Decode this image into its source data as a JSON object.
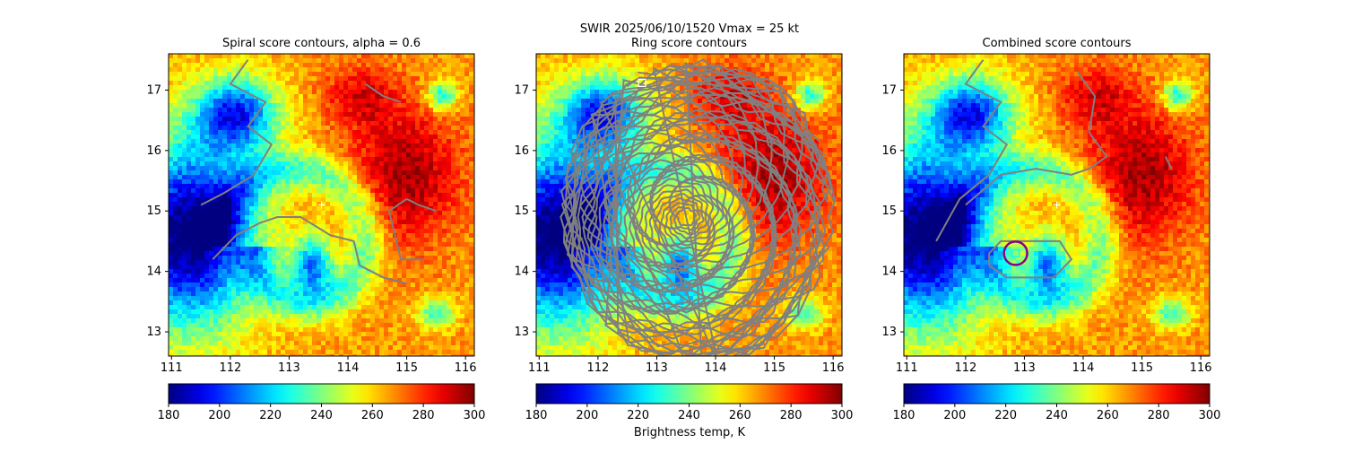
{
  "suptitle": "SWIR  2025/06/10/1520    Vmax = 25 kt",
  "colorbar_label": "Brightness temp, K",
  "chart_data": [
    {
      "type": "heatmap",
      "title": "Spiral score contours, alpha =  0.6",
      "xlim": [
        110.95,
        116.15
      ],
      "ylim": [
        12.6,
        17.6
      ],
      "x_ticks": [
        "111",
        "112",
        "113",
        "114",
        "115",
        "116"
      ],
      "y_ticks": [
        "13",
        "14",
        "15",
        "16",
        "17"
      ],
      "grid": false,
      "contour_color": "#808080",
      "markers": [
        {
          "shape": "plus",
          "x": 113.55,
          "y": 15.1,
          "color": "#ffffff"
        }
      ],
      "colorbar": {
        "vmin": 180,
        "vmax": 300,
        "ticks": [
          "180",
          "200",
          "220",
          "240",
          "260",
          "280",
          "300"
        ],
        "colormap": "jet_r"
      }
    },
    {
      "type": "heatmap",
      "title": "Ring score contours",
      "xlim": [
        110.95,
        116.15
      ],
      "ylim": [
        12.6,
        17.6
      ],
      "x_ticks": [
        "111",
        "112",
        "113",
        "114",
        "115",
        "116"
      ],
      "y_ticks": [
        "13",
        "14",
        "15",
        "16",
        "17"
      ],
      "grid": false,
      "contour_color": "#808080",
      "markers": [
        {
          "shape": "square",
          "x": 112.75,
          "y": 17.12,
          "color": "#ffffff"
        }
      ],
      "colorbar": {
        "vmin": 180,
        "vmax": 300,
        "ticks": [
          "180",
          "200",
          "220",
          "240",
          "260",
          "280",
          "300"
        ],
        "colormap": "jet_r"
      }
    },
    {
      "type": "heatmap",
      "title": "Combined score contours",
      "xlim": [
        110.95,
        116.15
      ],
      "ylim": [
        12.6,
        17.6
      ],
      "x_ticks": [
        "111",
        "112",
        "113",
        "114",
        "115",
        "116"
      ],
      "y_ticks": [
        "13",
        "14",
        "15",
        "16",
        "17"
      ],
      "grid": false,
      "contour_color": "#808080",
      "markers": [
        {
          "shape": "circle",
          "x": 112.85,
          "y": 14.3,
          "color": "#8b008b"
        },
        {
          "shape": "square",
          "x": 112.85,
          "y": 14.3,
          "color": "#00ffff"
        },
        {
          "shape": "plus",
          "x": 113.55,
          "y": 15.1,
          "color": "#ffffff"
        }
      ],
      "colorbar": {
        "vmin": 180,
        "vmax": 300,
        "ticks": [
          "180",
          "200",
          "220",
          "240",
          "260",
          "280",
          "300"
        ],
        "colormap": "jet_r"
      }
    }
  ]
}
